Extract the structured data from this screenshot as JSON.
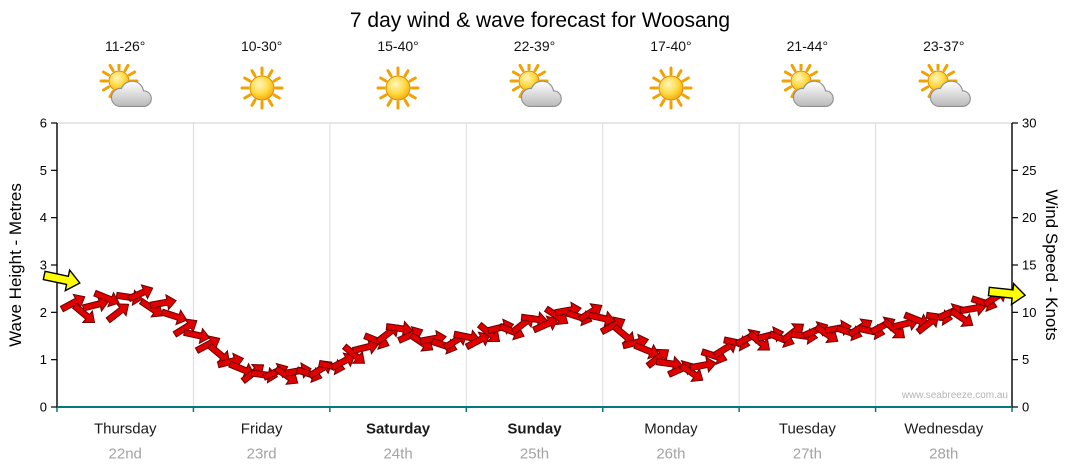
{
  "watermark": "www.seabreeze.com.au",
  "days": [
    {
      "name": "Thursday",
      "date": "22nd",
      "temp": "11-26°",
      "icon": "sun-cloud-icon",
      "bold": false
    },
    {
      "name": "Friday",
      "date": "23rd",
      "temp": "10-30°",
      "icon": "sun-icon",
      "bold": false
    },
    {
      "name": "Saturday",
      "date": "24th",
      "temp": "15-40°",
      "icon": "sun-icon",
      "bold": true
    },
    {
      "name": "Sunday",
      "date": "25th",
      "temp": "22-39°",
      "icon": "sun-cloud-icon",
      "bold": true
    },
    {
      "name": "Monday",
      "date": "26th",
      "temp": "17-40°",
      "icon": "sun-icon",
      "bold": false
    },
    {
      "name": "Tuesday",
      "date": "27th",
      "temp": "21-44°",
      "icon": "sun-cloud-icon",
      "bold": false
    },
    {
      "name": "Wednesday",
      "date": "28th",
      "temp": "23-37°",
      "icon": "sun-cloud-icon",
      "bold": false
    }
  ],
  "chart_data": {
    "type": "line",
    "title": "7 day wind & wave forecast for Woosang",
    "x_categories": [
      "Thursday 22nd",
      "Friday 23rd",
      "Saturday 24th",
      "Sunday 25th",
      "Monday 26th",
      "Tuesday 27th",
      "Wednesday 28th"
    ],
    "left_axis": {
      "label": "Wave Height - Metres",
      "min": 0,
      "max": 6,
      "ticks": [
        0,
        1,
        2,
        3,
        4,
        5,
        6
      ]
    },
    "right_axis": {
      "label": "Wind Speed - Knots",
      "min": 0,
      "max": 30,
      "ticks": [
        0,
        5,
        10,
        15,
        20,
        25,
        30
      ]
    },
    "grid": "vertical day separators only",
    "legend": "none",
    "series": [
      {
        "name": "Wind Speed",
        "units": "knots",
        "marker": "arrow",
        "color": "#e00000",
        "values": [
          13.5,
          11,
          9.8,
          10.8,
          11.5,
          10,
          11.6,
          12,
          10.4,
          11,
          9.6,
          8.4,
          7.6,
          6.6,
          5.6,
          4.8,
          4,
          3.6,
          3.4,
          3.7,
          3.3,
          3.8,
          3.5,
          4,
          4.3,
          4.8,
          5.5,
          6.3,
          7,
          7.8,
          8.3,
          7.6,
          6.8,
          7.2,
          6.5,
          7,
          7.4,
          7,
          7.8,
          8.4,
          8,
          8.8,
          9.3,
          8.7,
          9.6,
          10.2,
          9.5,
          10,
          9.4,
          8.6,
          7.6,
          6.8,
          6,
          5.2,
          4.6,
          4,
          3.6,
          4.4,
          5.4,
          6.2,
          6.8,
          7.3,
          6.9,
          7.6,
          7.2,
          7.9,
          7.5,
          8.1,
          7.7,
          8.3,
          7.9,
          8.4,
          8,
          8.6,
          8.2,
          8.8,
          9.2,
          8.8,
          9.5,
          10,
          9.4,
          10.4,
          11,
          11.6,
          12
        ],
        "directions_deg": [
          12,
          -28,
          40,
          -14,
          22,
          -38,
          8,
          -24,
          34,
          -10,
          18,
          -32,
          12,
          -28,
          40,
          -14,
          22,
          -38,
          8,
          -24,
          34,
          -10,
          18,
          -32,
          12,
          -28,
          40,
          -14,
          22,
          -38,
          8,
          -24,
          34,
          -10,
          18,
          -32,
          12,
          -28,
          40,
          -14,
          22,
          -38,
          8,
          -24,
          34,
          -10,
          18,
          -32,
          12,
          -28,
          40,
          -14,
          22,
          -38,
          8,
          -24,
          34,
          -10,
          18,
          -32,
          12,
          -28,
          40,
          -14,
          22,
          -38,
          8,
          -24,
          34,
          -10,
          18,
          -32,
          12,
          -28,
          40,
          -14,
          22,
          -38,
          8,
          -24,
          34,
          -10,
          18,
          -32,
          6
        ]
      }
    ],
    "endpoint_markers": {
      "color": "#ffff00",
      "description": "yellow arrows at series start and end",
      "first_value": 13.5,
      "last_value": 12
    }
  }
}
